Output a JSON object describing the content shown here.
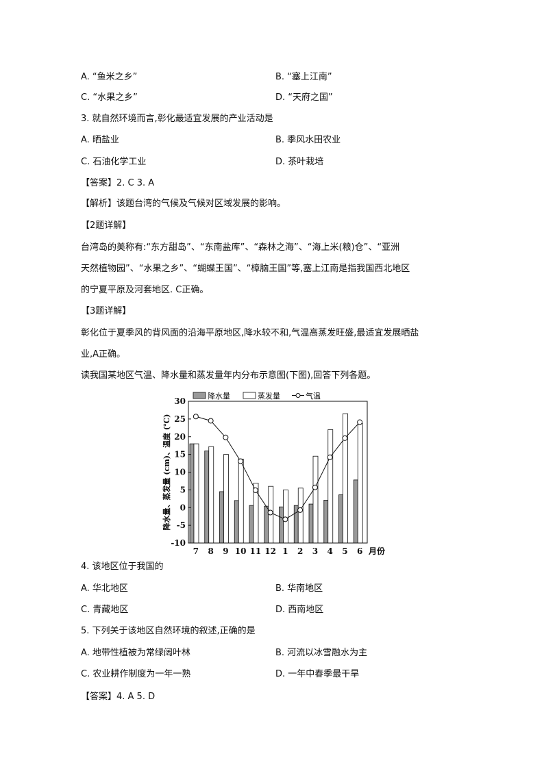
{
  "q2_options": {
    "A": "A. “鱼米之乡”",
    "B": "B. “塞上江南”",
    "C": "C. “水果之乡”",
    "D": "D. “天府之国”"
  },
  "q3": {
    "stem": "3. 就自然环境而言,彰化最适宜发展的产业活动是",
    "A": "A. 晒盐业",
    "B": "B. 季风水田农业",
    "C": "C. 石油化学工业",
    "D": "D. 茶叶栽培"
  },
  "answer1": "【答案】2. C     3. A",
  "analysis": "【解析】该题台湾的气候及气候对区域发展的影响。",
  "detail2_title": "【2题详解】",
  "detail2_lines": [
    "台湾岛的美称有:“东方甜岛”、“东南盐库”、“森林之海”、“海上米(粮)仓”、“亚洲",
    "天然植物园”、“水果之乡”、“蝴蝶王国”、“樟脑王国”等,塞上江南是指我国西北地区",
    "的宁夏平原及河套地区. C正确。"
  ],
  "detail3_title": "【3题详解】",
  "detail3_lines": [
    "彰化位于夏季风的背风面的沿海平原地区,降水较不和,气温高蒸发旺盛,最适宜发展晒盐",
    "业,A正确。"
  ],
  "intro": "读我国某地区气温、降水量和蒸发量年内分布示意图(下图),回答下列各题。",
  "chart_data": {
    "type": "bar+line",
    "categories": [
      "7",
      "8",
      "9",
      "10",
      "11",
      "12",
      "1",
      "2",
      "3",
      "4",
      "5",
      "6"
    ],
    "xlabel": "月份",
    "ylabel": "降水量、蒸发量 (cm)、温度 (℃)",
    "ylim": [
      -10,
      30
    ],
    "yticks": [
      "30",
      "25",
      "20",
      "15",
      "10",
      "5",
      "0",
      "-5",
      "-10"
    ],
    "legend": "top",
    "series": [
      {
        "name": "降水量",
        "type": "bar",
        "color": "#999999",
        "values": [
          18,
          16,
          4.5,
          2,
          0.6,
          0.4,
          0.2,
          0.6,
          1,
          2.1,
          3.6,
          7.8
        ]
      },
      {
        "name": "蒸发量",
        "type": "bar",
        "color": "#ffffff",
        "values": [
          18,
          17.2,
          15,
          13.7,
          6.9,
          6,
          5,
          5.5,
          14.5,
          22,
          26.5,
          23.7
        ]
      },
      {
        "name": "气温",
        "type": "line",
        "color": "#111111",
        "values": [
          25.7,
          24.5,
          19.8,
          13.1,
          4.9,
          -1.4,
          -3.3,
          -0.7,
          5.7,
          14.2,
          19.6,
          24.1
        ]
      }
    ]
  },
  "q4": {
    "stem": "4. 该地区位于我国的",
    "A": "A. 华北地区",
    "B": "B. 华南地区",
    "C": "C. 青藏地区",
    "D": "D. 西南地区"
  },
  "q5": {
    "stem": "5. 下列关于该地区自然环境的叙述,正确的是",
    "A": "A. 地带性植被为常绿阔叶林",
    "B": "B. 河流以冰雪融水为主",
    "C": "C. 农业耕作制度为一年一熟",
    "D": "D. 一年中春季最干旱"
  },
  "answer2": "【答案】4. A     5. D"
}
